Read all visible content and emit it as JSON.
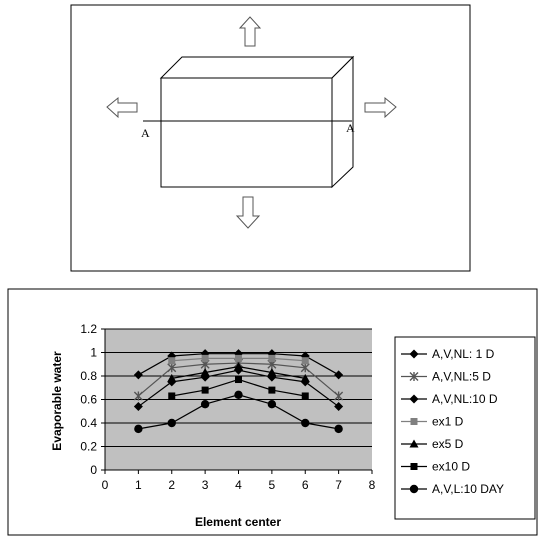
{
  "diagram": {
    "section_label_left": "A",
    "section_label_right": "A"
  },
  "chart_data": {
    "type": "line",
    "xlabel": "Element center",
    "ylabel": "Evaporable water",
    "xlim": [
      0,
      8
    ],
    "ylim": [
      0,
      1.2
    ],
    "x_ticks": [
      "0",
      "1",
      "2",
      "3",
      "4",
      "5",
      "6",
      "7",
      "8"
    ],
    "y_ticks": [
      "0",
      "0.2",
      "0.4",
      "0.6",
      "0.8",
      "1",
      "1.2"
    ],
    "grid": "horizontal",
    "plot_background": "#c0c0c0",
    "legend_position": "right",
    "x": [
      1,
      2,
      3,
      4,
      5,
      6,
      7
    ],
    "series": [
      {
        "name": "A,V,NL: 1 D",
        "marker": "diamond",
        "color": "#000000",
        "values": [
          0.81,
          0.97,
          0.99,
          0.99,
          0.99,
          0.97,
          0.81
        ]
      },
      {
        "name": "A,V,NL:5 D",
        "marker": "asterisk",
        "color": "#555555",
        "values": [
          0.63,
          0.87,
          0.9,
          0.91,
          0.9,
          0.87,
          0.63
        ]
      },
      {
        "name": "A,V,NL:10 D",
        "marker": "diamond",
        "color": "#000000",
        "values": [
          0.54,
          0.75,
          0.79,
          0.85,
          0.79,
          0.75,
          0.54
        ]
      },
      {
        "name": "ex1 D",
        "marker": "square",
        "color": "#808080",
        "values": [
          null,
          0.93,
          0.95,
          0.95,
          0.95,
          0.93,
          null
        ]
      },
      {
        "name": "ex5 D",
        "marker": "triangle",
        "color": "#000000",
        "values": [
          null,
          0.78,
          0.83,
          0.88,
          0.83,
          0.78,
          null
        ]
      },
      {
        "name": "ex10 D",
        "marker": "square",
        "color": "#000000",
        "values": [
          null,
          0.63,
          0.68,
          0.77,
          0.68,
          0.63,
          null
        ]
      },
      {
        "name": "A,V,L:10 DAY",
        "marker": "circle",
        "color": "#000000",
        "values": [
          0.35,
          0.4,
          0.56,
          0.64,
          0.56,
          0.4,
          0.35
        ]
      }
    ]
  }
}
